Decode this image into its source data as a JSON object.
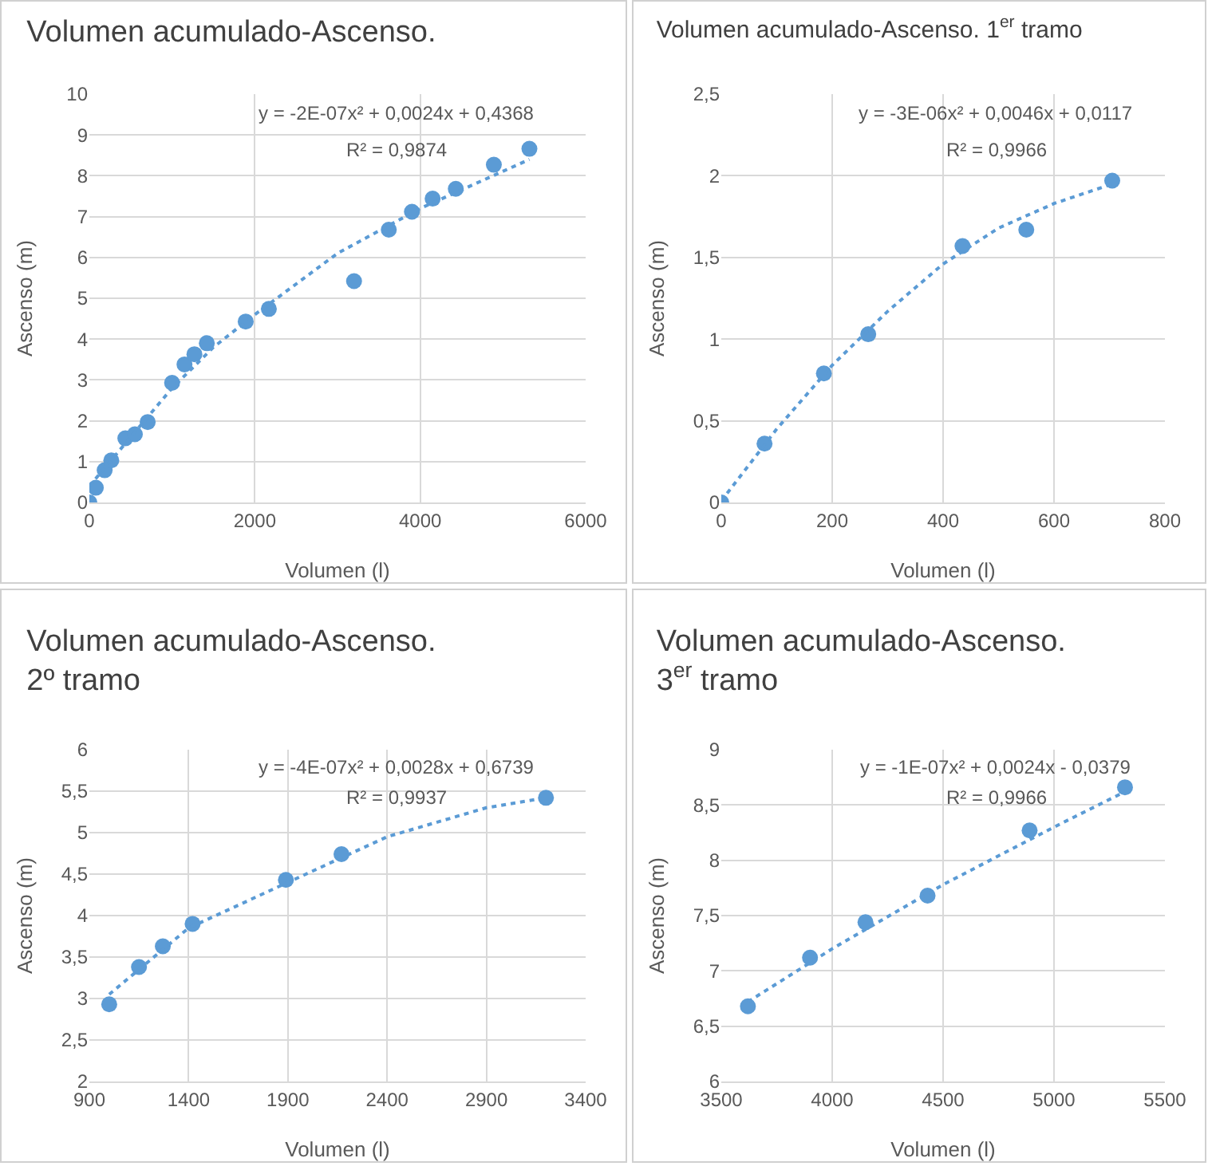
{
  "chart_data": [
    {
      "type": "scatter",
      "title": "Volumen acumulado-Ascenso.",
      "xlabel": "Volumen (l)",
      "ylabel": "Ascenso (m)",
      "xlim": [
        0,
        6000
      ],
      "xticks": [
        0,
        2000,
        4000,
        6000
      ],
      "ylim": [
        0,
        10
      ],
      "yticks": [
        0,
        1,
        2,
        3,
        4,
        5,
        6,
        7,
        8,
        9,
        10
      ],
      "grid": true,
      "marker": "circle",
      "annotations": [
        "y = -2E-07x² + 0,0024x + 0,4368",
        "R² = 0,9874"
      ],
      "series": [
        {
          "color": "#5b9bd5",
          "x": [
            0,
            78,
            185,
            265,
            435,
            550,
            705,
            1000,
            1150,
            1270,
            1420,
            1890,
            2170,
            3200,
            3620,
            3900,
            4150,
            4430,
            4890,
            5320
          ],
          "values": [
            0,
            0.36,
            0.79,
            1.03,
            1.57,
            1.67,
            1.97,
            2.93,
            3.38,
            3.63,
            3.9,
            4.43,
            4.74,
            5.42,
            6.68,
            7.12,
            7.44,
            7.68,
            8.27,
            8.66
          ]
        },
        {
          "type": "line",
          "color": "#5b9bd5",
          "marker": "none",
          "line_style": "dotted",
          "x": [
            0,
            500,
            1000,
            1500,
            2000,
            3000,
            4000,
            5320
          ],
          "values": [
            0.4,
            1.6,
            2.8,
            3.8,
            4.6,
            6.1,
            7.2,
            8.4
          ]
        }
      ]
    },
    {
      "type": "scatter",
      "title": "Volumen acumulado-Ascenso. 1$^{er}$ tramo",
      "xlabel": "Volumen (l)",
      "ylabel": "Ascenso (m)",
      "xlim": [
        0,
        800
      ],
      "xticks": [
        0,
        200,
        400,
        600,
        800
      ],
      "ylim": [
        0,
        2.5
      ],
      "yticks": [
        0,
        {
          "value": 0.5,
          "label": "0,5"
        },
        1,
        {
          "value": 1.5,
          "label": "1,5"
        },
        2,
        {
          "value": 2.5,
          "label": "2,5"
        }
      ],
      "grid": true,
      "marker": "circle",
      "annotations": [
        "y = -3E-06x² + 0,0046x + 0,0117",
        "R² = 0,9966"
      ],
      "series": [
        {
          "color": "#5b9bd5",
          "x": [
            0,
            78,
            185,
            265,
            435,
            550,
            705
          ],
          "values": [
            0,
            0.36,
            0.79,
            1.03,
            1.57,
            1.67,
            1.97
          ]
        },
        {
          "type": "line",
          "color": "#5b9bd5",
          "marker": "none",
          "line_style": "dotted",
          "x": [
            0,
            100,
            200,
            300,
            400,
            500,
            600,
            705
          ],
          "values": [
            0.01,
            0.45,
            0.84,
            1.17,
            1.46,
            1.68,
            1.83,
            1.95
          ]
        }
      ]
    },
    {
      "type": "scatter",
      "title": "Volumen acumulado-Ascenso.\n2º tramo",
      "xlabel": "Volumen (l)",
      "ylabel": "Ascenso (m)",
      "xlim": [
        900,
        3400
      ],
      "xticks": [
        900,
        1400,
        1900,
        2400,
        2900,
        3400
      ],
      "ylim": [
        2,
        6
      ],
      "yticks": [
        2,
        {
          "value": 2.5,
          "label": "2,5"
        },
        3,
        {
          "value": 3.5,
          "label": "3,5"
        },
        4,
        {
          "value": 4.5,
          "label": "4,5"
        },
        5,
        {
          "value": 5.5,
          "label": "5,5"
        },
        6
      ],
      "grid": true,
      "marker": "circle",
      "annotations": [
        "y = -4E-07x² + 0,0028x + 0,6739",
        "R² = 0,9937"
      ],
      "series": [
        {
          "color": "#5b9bd5",
          "x": [
            1000,
            1150,
            1270,
            1420,
            1890,
            2170,
            3200
          ],
          "values": [
            2.93,
            3.38,
            3.63,
            3.9,
            4.43,
            4.74,
            5.42
          ]
        },
        {
          "type": "line",
          "color": "#5b9bd5",
          "marker": "none",
          "line_style": "dotted",
          "x": [
            1000,
            1400,
            1900,
            2400,
            2900,
            3200
          ],
          "values": [
            3.05,
            3.85,
            4.4,
            4.95,
            5.3,
            5.42
          ]
        }
      ]
    },
    {
      "type": "scatter",
      "title": "Volumen acumulado-Ascenso.\n3$^{er}$ tramo",
      "xlabel": "Volumen (l)",
      "ylabel": "Ascenso (m)",
      "xlim": [
        3500,
        5500
      ],
      "xticks": [
        3500,
        4000,
        4500,
        5000,
        5500
      ],
      "ylim": [
        6,
        9
      ],
      "yticks": [
        6,
        {
          "value": 6.5,
          "label": "6,5"
        },
        7,
        {
          "value": 7.5,
          "label": "7,5"
        },
        8,
        {
          "value": 8.5,
          "label": "8,5"
        },
        9
      ],
      "grid": true,
      "marker": "circle",
      "annotations": [
        "y = -1E-07x² + 0,0024x - 0,0379",
        "R² = 0,9966"
      ],
      "series": [
        {
          "color": "#5b9bd5",
          "x": [
            3620,
            3900,
            4150,
            4430,
            4890,
            5320
          ],
          "values": [
            6.68,
            7.12,
            7.44,
            7.68,
            8.27,
            8.66
          ]
        },
        {
          "type": "line",
          "color": "#5b9bd5",
          "marker": "none",
          "line_style": "dotted",
          "x": [
            3620,
            4000,
            4500,
            5000,
            5320
          ],
          "values": [
            6.72,
            7.2,
            7.78,
            8.3,
            8.62
          ]
        }
      ]
    }
  ]
}
